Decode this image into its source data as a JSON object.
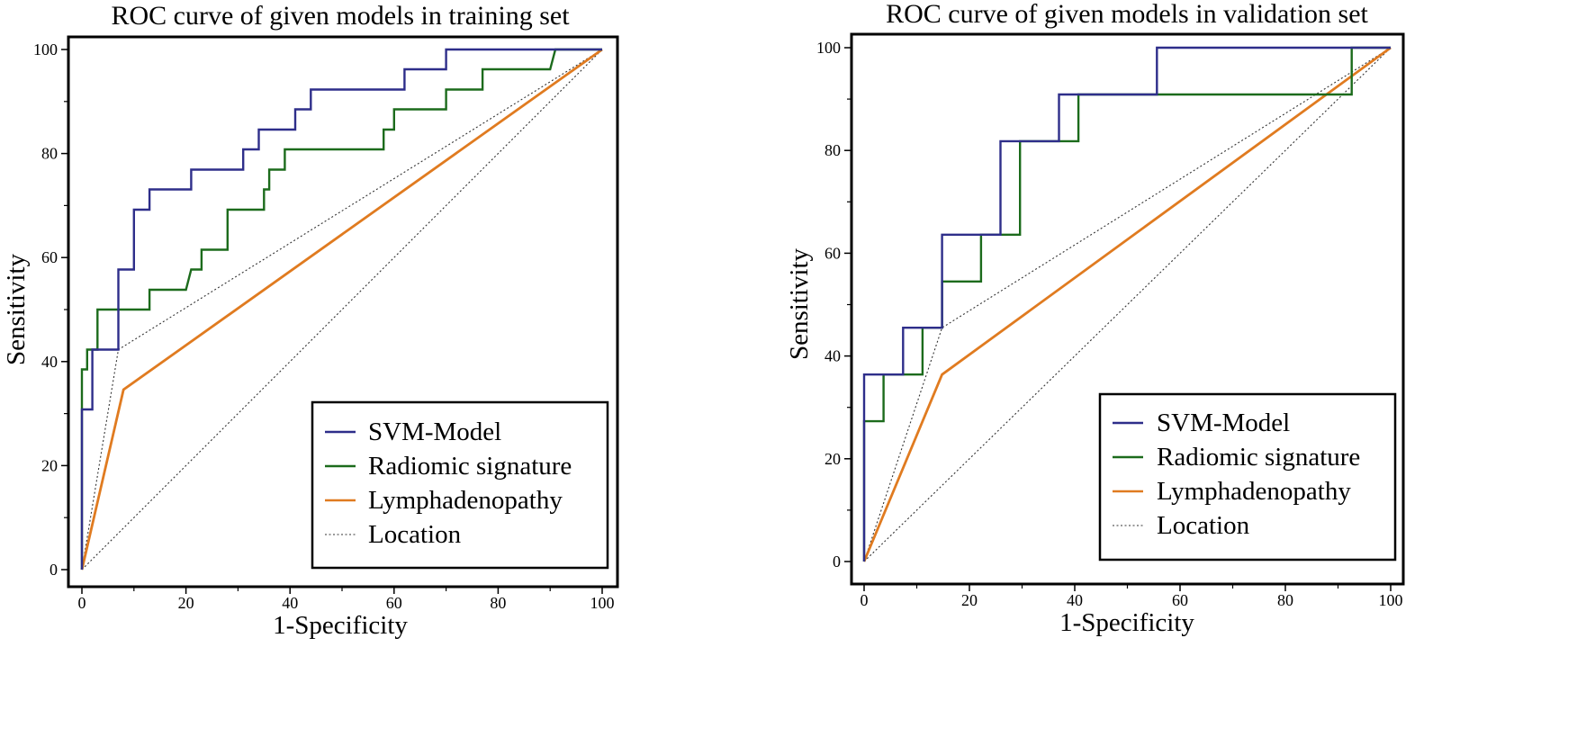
{
  "chart_data": [
    {
      "type": "line",
      "title": "ROC curve of given models in training set",
      "xlabel": "1-Specificity",
      "ylabel": "Sensitivity",
      "xlim": [
        0,
        100
      ],
      "ylim": [
        0,
        100
      ],
      "xticks": [
        "0",
        "20",
        "40",
        "60",
        "80",
        "100"
      ],
      "yticks": [
        "0",
        "20",
        "40",
        "60",
        "80",
        "100"
      ],
      "legend_position": "bottom-right",
      "series": [
        {
          "name": "SVM-Model",
          "color": "#2e2e8a",
          "style": "solid",
          "points": [
            [
              0,
              0
            ],
            [
              0,
              30.8
            ],
            [
              2,
              30.8
            ],
            [
              2,
              42.3
            ],
            [
              7,
              42.3
            ],
            [
              7,
              57.7
            ],
            [
              10,
              57.7
            ],
            [
              10,
              69.2
            ],
            [
              13,
              69.2
            ],
            [
              13,
              73.1
            ],
            [
              21,
              73.1
            ],
            [
              21,
              76.9
            ],
            [
              31,
              76.9
            ],
            [
              31,
              80.8
            ],
            [
              34,
              80.8
            ],
            [
              34,
              84.6
            ],
            [
              41,
              84.6
            ],
            [
              41,
              88.5
            ],
            [
              44,
              88.5
            ],
            [
              44,
              92.3
            ],
            [
              62,
              92.3
            ],
            [
              62,
              96.2
            ],
            [
              70,
              96.2
            ],
            [
              70,
              100
            ],
            [
              100,
              100
            ]
          ]
        },
        {
          "name": "Radiomic signature",
          "color": "#1c6b1c",
          "style": "solid",
          "points": [
            [
              0,
              0
            ],
            [
              0,
              38.5
            ],
            [
              1,
              38.5
            ],
            [
              1,
              42.3
            ],
            [
              3,
              42.3
            ],
            [
              3,
              50
            ],
            [
              13,
              50
            ],
            [
              13,
              53.8
            ],
            [
              20,
              53.8
            ],
            [
              21,
              57.7
            ],
            [
              23,
              57.7
            ],
            [
              23,
              61.5
            ],
            [
              28,
              61.5
            ],
            [
              28,
              69.2
            ],
            [
              35,
              69.2
            ],
            [
              35,
              73.1
            ],
            [
              36,
              73.1
            ],
            [
              36,
              76.9
            ],
            [
              39,
              76.9
            ],
            [
              39,
              80.8
            ],
            [
              58,
              80.8
            ],
            [
              58,
              84.6
            ],
            [
              60,
              84.6
            ],
            [
              60,
              88.5
            ],
            [
              70,
              88.5
            ],
            [
              70,
              92.3
            ],
            [
              77,
              92.3
            ],
            [
              77,
              96.2
            ],
            [
              90,
              96.2
            ],
            [
              91,
              100
            ],
            [
              100,
              100
            ]
          ]
        },
        {
          "name": "Lymphadenopathy",
          "color": "#e07b20",
          "style": "solid",
          "points": [
            [
              0,
              0
            ],
            [
              8,
              34.6
            ],
            [
              100,
              100
            ]
          ]
        },
        {
          "name": "Location",
          "color": "#333333",
          "style": "dotted",
          "points": [
            [
              0,
              0
            ],
            [
              7,
              42.3
            ],
            [
              100,
              100
            ]
          ]
        },
        {
          "name": "Reference",
          "color": "#333333",
          "style": "dotted",
          "in_legend": false,
          "points": [
            [
              0,
              0
            ],
            [
              100,
              100
            ]
          ]
        }
      ]
    },
    {
      "type": "line",
      "title": "ROC curve of given models in validation set",
      "xlabel": "1-Specificity",
      "ylabel": "Sensitivity",
      "xlim": [
        0,
        100
      ],
      "ylim": [
        0,
        100
      ],
      "xticks": [
        "0",
        "20",
        "40",
        "60",
        "80",
        "100"
      ],
      "yticks": [
        "0",
        "20",
        "40",
        "60",
        "80",
        "100"
      ],
      "legend_position": "bottom-right",
      "series": [
        {
          "name": "SVM-Model",
          "color": "#2e2e8a",
          "style": "solid",
          "points": [
            [
              0,
              0
            ],
            [
              0,
              36.4
            ],
            [
              7.4,
              36.4
            ],
            [
              7.4,
              45.5
            ],
            [
              14.8,
              45.5
            ],
            [
              14.8,
              63.6
            ],
            [
              25.9,
              63.6
            ],
            [
              25.9,
              81.8
            ],
            [
              37,
              81.8
            ],
            [
              37,
              90.9
            ],
            [
              55.6,
              90.9
            ],
            [
              55.6,
              100
            ],
            [
              100,
              100
            ]
          ]
        },
        {
          "name": "Radiomic signature",
          "color": "#1c6b1c",
          "style": "solid",
          "points": [
            [
              0,
              0
            ],
            [
              0,
              27.3
            ],
            [
              3.7,
              27.3
            ],
            [
              3.7,
              36.4
            ],
            [
              11.1,
              36.4
            ],
            [
              11.1,
              45.5
            ],
            [
              14.8,
              45.5
            ],
            [
              14.8,
              54.5
            ],
            [
              22.2,
              54.5
            ],
            [
              22.2,
              63.6
            ],
            [
              29.6,
              63.6
            ],
            [
              29.6,
              81.8
            ],
            [
              40.7,
              81.8
            ],
            [
              40.7,
              90.9
            ],
            [
              92.6,
              90.9
            ],
            [
              92.6,
              100
            ],
            [
              100,
              100
            ]
          ]
        },
        {
          "name": "Lymphadenopathy",
          "color": "#e07b20",
          "style": "solid",
          "points": [
            [
              0,
              0
            ],
            [
              14.8,
              36.4
            ],
            [
              100,
              100
            ]
          ]
        },
        {
          "name": "Location",
          "color": "#333333",
          "style": "dotted",
          "points": [
            [
              0,
              0
            ],
            [
              14.8,
              45.5
            ],
            [
              100,
              100
            ]
          ]
        },
        {
          "name": "Reference",
          "color": "#333333",
          "style": "dotted",
          "in_legend": false,
          "points": [
            [
              0,
              0
            ],
            [
              100,
              100
            ]
          ]
        }
      ]
    }
  ]
}
